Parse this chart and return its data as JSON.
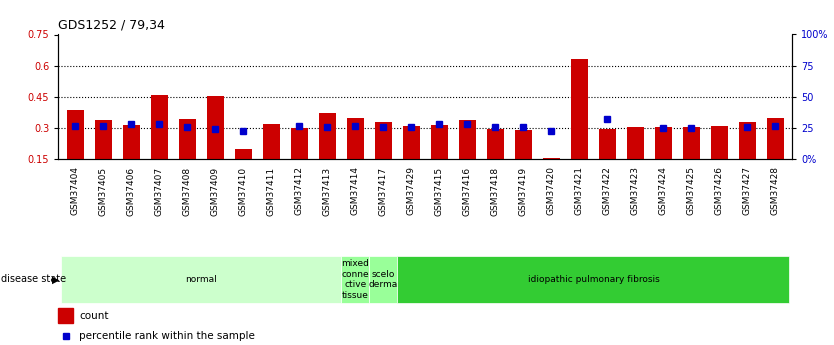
{
  "title": "GDS1252 / 79,34",
  "samples": [
    "GSM37404",
    "GSM37405",
    "GSM37406",
    "GSM37407",
    "GSM37408",
    "GSM37409",
    "GSM37410",
    "GSM37411",
    "GSM37412",
    "GSM37413",
    "GSM37414",
    "GSM37417",
    "GSM37429",
    "GSM37415",
    "GSM37416",
    "GSM37418",
    "GSM37419",
    "GSM37420",
    "GSM37421",
    "GSM37422",
    "GSM37423",
    "GSM37424",
    "GSM37425",
    "GSM37426",
    "GSM37427",
    "GSM37428"
  ],
  "red_values": [
    0.385,
    0.335,
    0.315,
    0.46,
    0.34,
    0.455,
    0.195,
    0.32,
    0.3,
    0.37,
    0.345,
    0.325,
    0.31,
    0.315,
    0.335,
    0.295,
    0.29,
    0.155,
    0.63,
    0.295,
    0.305,
    0.305,
    0.305,
    0.31,
    0.325,
    0.345
  ],
  "blue_values": [
    0.31,
    0.31,
    0.32,
    0.32,
    0.305,
    0.295,
    0.285,
    null,
    0.31,
    0.305,
    0.31,
    0.305,
    0.305,
    0.32,
    0.32,
    0.305,
    0.305,
    0.285,
    null,
    0.34,
    null,
    0.3,
    0.3,
    null,
    0.305,
    0.31
  ],
  "ylim_left": [
    0.15,
    0.75
  ],
  "ylim_right": [
    0,
    100
  ],
  "yticks_left": [
    0.15,
    0.3,
    0.45,
    0.6,
    0.75
  ],
  "yticks_right": [
    0,
    25,
    50,
    75,
    100
  ],
  "ytick_labels_left": [
    "0.15",
    "0.3",
    "0.45",
    "0.6",
    "0.75"
  ],
  "ytick_labels_right": [
    "0%",
    "25",
    "50",
    "75",
    "100%"
  ],
  "grid_values": [
    0.3,
    0.45,
    0.6
  ],
  "bar_color": "#cc0000",
  "blue_color": "#0000cc",
  "disease_groups": [
    {
      "label": "normal",
      "start": 0,
      "end": 10,
      "color": "#ccffcc"
    },
    {
      "label": "mixed\nconne\nctive\ntissue",
      "start": 10,
      "end": 11,
      "color": "#99ff99"
    },
    {
      "label": "scelo\nderma",
      "start": 11,
      "end": 12,
      "color": "#99ff99"
    },
    {
      "label": "idiopathic pulmonary fibrosis",
      "start": 12,
      "end": 26,
      "color": "#33cc33"
    }
  ],
  "disease_state_label": "disease state",
  "legend_count": "count",
  "legend_percentile": "percentile rank within the sample",
  "axis_label_color_left": "#cc0000",
  "axis_label_color_right": "#0000cc",
  "bar_width": 0.6
}
